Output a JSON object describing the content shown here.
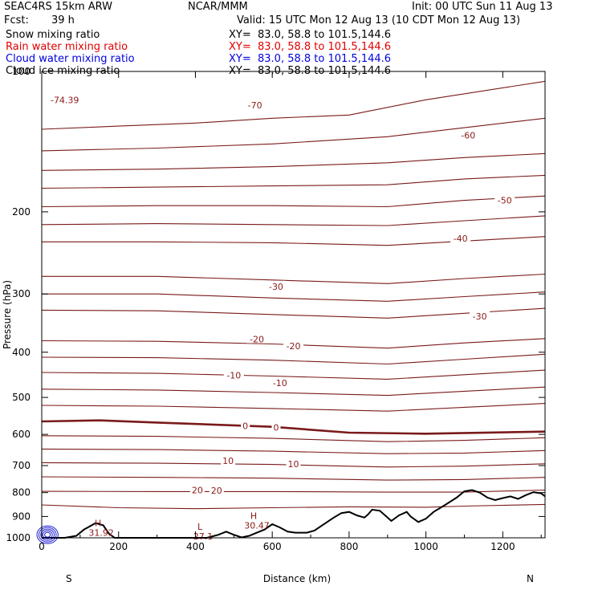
{
  "header": {
    "model": "SEAC4RS 15km ARW",
    "org": "NCAR/MMM",
    "init": "Init: 00 UTC Sun 11 Aug 13",
    "fcst_label": "Fcst:",
    "fcst_value": "39 h",
    "valid": "Valid: 15 UTC Mon 12 Aug 13 (10 CDT Mon 12 Aug 13)",
    "fields": [
      {
        "name": "Snow mixing ratio",
        "xy": "XY=  83.0, 58.8 to 101.5,144.6",
        "color": "#000000"
      },
      {
        "name": "Rain water mixing ratio",
        "xy": "XY=  83.0, 58.8 to 101.5,144.6",
        "color": "#E00000"
      },
      {
        "name": "Cloud water mixing ratio",
        "xy": "XY=  83.0, 58.8 to 101.5,144.6",
        "color": "#0000E0"
      },
      {
        "name": "Cloud ice mixing ratio",
        "xy": "XY=  83.0, 58.8 to 101.5,144.6",
        "color": "#000000"
      }
    ]
  },
  "chart_data": {
    "type": "contour",
    "xlabel": "Distance (km)",
    "ylabel": "Pressure (hPa)",
    "xlim": [
      0,
      1310
    ],
    "ylim": [
      1000,
      100
    ],
    "y_scale": "log",
    "x_ticks": [
      0,
      200,
      400,
      600,
      800,
      1000,
      1200
    ],
    "y_ticks": [
      100,
      200,
      300,
      400,
      500,
      600,
      700,
      800,
      900,
      1000
    ],
    "x_end_labels": [
      "S",
      "N"
    ],
    "contour_color": "#7A1A1A",
    "terrain": [
      [
        0,
        1010
      ],
      [
        30,
        1012
      ],
      [
        60,
        1005
      ],
      [
        90,
        990
      ],
      [
        110,
        960
      ],
      [
        140,
        930
      ],
      [
        160,
        940
      ],
      [
        175,
        980
      ],
      [
        190,
        1008
      ],
      [
        210,
        1012
      ],
      [
        300,
        1012
      ],
      [
        400,
        1012
      ],
      [
        430,
        1000
      ],
      [
        460,
        985
      ],
      [
        480,
        970
      ],
      [
        500,
        985
      ],
      [
        520,
        998
      ],
      [
        540,
        990
      ],
      [
        560,
        975
      ],
      [
        580,
        960
      ],
      [
        600,
        935
      ],
      [
        620,
        950
      ],
      [
        640,
        970
      ],
      [
        660,
        975
      ],
      [
        690,
        975
      ],
      [
        710,
        965
      ],
      [
        730,
        940
      ],
      [
        760,
        905
      ],
      [
        780,
        885
      ],
      [
        800,
        880
      ],
      [
        820,
        895
      ],
      [
        840,
        905
      ],
      [
        850,
        890
      ],
      [
        860,
        870
      ],
      [
        880,
        875
      ],
      [
        900,
        905
      ],
      [
        910,
        920
      ],
      [
        930,
        895
      ],
      [
        950,
        880
      ],
      [
        960,
        900
      ],
      [
        980,
        925
      ],
      [
        1000,
        910
      ],
      [
        1020,
        880
      ],
      [
        1050,
        850
      ],
      [
        1080,
        820
      ],
      [
        1100,
        795
      ],
      [
        1120,
        790
      ],
      [
        1140,
        800
      ],
      [
        1160,
        820
      ],
      [
        1180,
        830
      ],
      [
        1200,
        822
      ],
      [
        1220,
        815
      ],
      [
        1240,
        825
      ],
      [
        1260,
        810
      ],
      [
        1280,
        798
      ],
      [
        1300,
        803
      ],
      [
        1310,
        815
      ]
    ],
    "isotherms": [
      {
        "label": "-70",
        "pts": [
          [
            0,
            133
          ],
          [
            200,
            131
          ],
          [
            400,
            129
          ],
          [
            600,
            126
          ],
          [
            800,
            124
          ],
          [
            1000,
            115
          ],
          [
            1310,
            105
          ]
        ]
      },
      {
        "label": "-60",
        "pts": [
          [
            0,
            148
          ],
          [
            300,
            146
          ],
          [
            600,
            143
          ],
          [
            900,
            138
          ],
          [
            1100,
            132
          ],
          [
            1310,
            126
          ]
        ]
      },
      {
        "label": "",
        "pts": [
          [
            0,
            163
          ],
          [
            300,
            162
          ],
          [
            600,
            160
          ],
          [
            900,
            157
          ],
          [
            1100,
            153
          ],
          [
            1310,
            150
          ]
        ]
      },
      {
        "label": "",
        "pts": [
          [
            0,
            178
          ],
          [
            300,
            177
          ],
          [
            600,
            176
          ],
          [
            900,
            175
          ],
          [
            1100,
            170
          ],
          [
            1310,
            167
          ]
        ]
      },
      {
        "label": "-50",
        "pts": [
          [
            0,
            195
          ],
          [
            300,
            194
          ],
          [
            600,
            194
          ],
          [
            900,
            195
          ],
          [
            1100,
            189
          ],
          [
            1310,
            185
          ]
        ]
      },
      {
        "label": "",
        "pts": [
          [
            0,
            213
          ],
          [
            300,
            212
          ],
          [
            600,
            213
          ],
          [
            900,
            214
          ],
          [
            1100,
            209
          ],
          [
            1310,
            204
          ]
        ]
      },
      {
        "label": "-40",
        "pts": [
          [
            0,
            232
          ],
          [
            300,
            232
          ],
          [
            600,
            233
          ],
          [
            900,
            236
          ],
          [
            1100,
            231
          ],
          [
            1310,
            226
          ]
        ]
      },
      {
        "label": "-30",
        "pts": [
          [
            0,
            275
          ],
          [
            300,
            275
          ],
          [
            600,
            280
          ],
          [
            900,
            285
          ],
          [
            1100,
            278
          ],
          [
            1310,
            272
          ]
        ]
      },
      {
        "label": "",
        "pts": [
          [
            0,
            300
          ],
          [
            300,
            300
          ],
          [
            600,
            306
          ],
          [
            900,
            311
          ],
          [
            1100,
            304
          ],
          [
            1310,
            297
          ]
        ]
      },
      {
        "label": "-30",
        "pts": [
          [
            0,
            325
          ],
          [
            300,
            326
          ],
          [
            600,
            332
          ],
          [
            900,
            338
          ],
          [
            1100,
            330
          ],
          [
            1310,
            322
          ]
        ]
      },
      {
        "label": "-20",
        "pts": [
          [
            0,
            378
          ],
          [
            300,
            379
          ],
          [
            600,
            384
          ],
          [
            900,
            392
          ],
          [
            1100,
            382
          ],
          [
            1310,
            374
          ]
        ]
      },
      {
        "label": "",
        "pts": [
          [
            0,
            410
          ],
          [
            300,
            411
          ],
          [
            600,
            416
          ],
          [
            900,
            424
          ],
          [
            1100,
            414
          ],
          [
            1310,
            404
          ]
        ]
      },
      {
        "label": "-10",
        "pts": [
          [
            0,
            442
          ],
          [
            300,
            444
          ],
          [
            600,
            450
          ],
          [
            900,
            457
          ],
          [
            1100,
            447
          ],
          [
            1310,
            437
          ]
        ]
      },
      {
        "label": "",
        "pts": [
          [
            0,
            480
          ],
          [
            300,
            482
          ],
          [
            600,
            488
          ],
          [
            900,
            495
          ],
          [
            1100,
            485
          ],
          [
            1310,
            475
          ]
        ]
      },
      {
        "label": "",
        "pts": [
          [
            0,
            520
          ],
          [
            300,
            522
          ],
          [
            600,
            528
          ],
          [
            900,
            535
          ],
          [
            1100,
            525
          ],
          [
            1310,
            515
          ]
        ]
      },
      {
        "label": "0",
        "pts": [
          [
            0,
            563
          ],
          [
            150,
            560
          ],
          [
            300,
            566
          ],
          [
            600,
            578
          ],
          [
            800,
            595
          ],
          [
            1000,
            598
          ],
          [
            1310,
            592
          ]
        ],
        "bold": true
      },
      {
        "label": "",
        "pts": [
          [
            0,
            604
          ],
          [
            300,
            606
          ],
          [
            600,
            612
          ],
          [
            900,
            622
          ],
          [
            1100,
            618
          ],
          [
            1310,
            610
          ]
        ]
      },
      {
        "label": "",
        "pts": [
          [
            0,
            645
          ],
          [
            300,
            647
          ],
          [
            600,
            652
          ],
          [
            900,
            660
          ],
          [
            1100,
            658
          ],
          [
            1310,
            650
          ]
        ]
      },
      {
        "label": "10",
        "pts": [
          [
            0,
            690
          ],
          [
            300,
            692
          ],
          [
            600,
            696
          ],
          [
            900,
            705
          ],
          [
            1100,
            702
          ],
          [
            1310,
            694
          ]
        ]
      },
      {
        "label": "",
        "pts": [
          [
            0,
            740
          ],
          [
            300,
            742
          ],
          [
            600,
            745
          ],
          [
            900,
            752
          ],
          [
            1100,
            750
          ],
          [
            1310,
            742
          ]
        ]
      },
      {
        "label": "20",
        "pts": [
          [
            0,
            795
          ],
          [
            300,
            796
          ],
          [
            600,
            796
          ],
          [
            900,
            798
          ],
          [
            1100,
            798
          ],
          [
            1310,
            790
          ]
        ]
      },
      {
        "label": "",
        "pts": [
          [
            0,
            850
          ],
          [
            200,
            862
          ],
          [
            400,
            866
          ],
          [
            600,
            862
          ],
          [
            800,
            858
          ],
          [
            1000,
            860
          ],
          [
            1100,
            855
          ],
          [
            1310,
            848
          ]
        ]
      }
    ],
    "contour_labels": [
      {
        "text": "-74.39",
        "x": 60,
        "p": 115
      },
      {
        "text": "-70",
        "x": 555,
        "p": 118
      },
      {
        "text": "-60",
        "x": 1110,
        "p": 137
      },
      {
        "text": "-50",
        "x": 1205,
        "p": 189
      },
      {
        "text": "-40",
        "x": 1090,
        "p": 228
      },
      {
        "text": "-30",
        "x": 610,
        "p": 289
      },
      {
        "text": "-30",
        "x": 1140,
        "p": 335
      },
      {
        "text": "-20",
        "x": 560,
        "p": 375
      },
      {
        "text": "-20",
        "x": 655,
        "p": 388
      },
      {
        "text": "-10",
        "x": 500,
        "p": 448
      },
      {
        "text": "-10",
        "x": 620,
        "p": 465
      },
      {
        "text": "0",
        "x": 530,
        "p": 575
      },
      {
        "text": "0",
        "x": 610,
        "p": 580
      },
      {
        "text": "10",
        "x": 485,
        "p": 684
      },
      {
        "text": "10",
        "x": 655,
        "p": 695
      },
      {
        "text": "20",
        "x": 405,
        "p": 790
      },
      {
        "text": "20",
        "x": 455,
        "p": 792
      }
    ],
    "extrema_labels": [
      {
        "letter": "H",
        "value": "31.92",
        "x": 155,
        "p": 975
      },
      {
        "letter": "L",
        "value": "27.1",
        "x": 420,
        "p": 993
      },
      {
        "letter": "H",
        "value": "30.47",
        "x": 560,
        "p": 940
      }
    ]
  }
}
